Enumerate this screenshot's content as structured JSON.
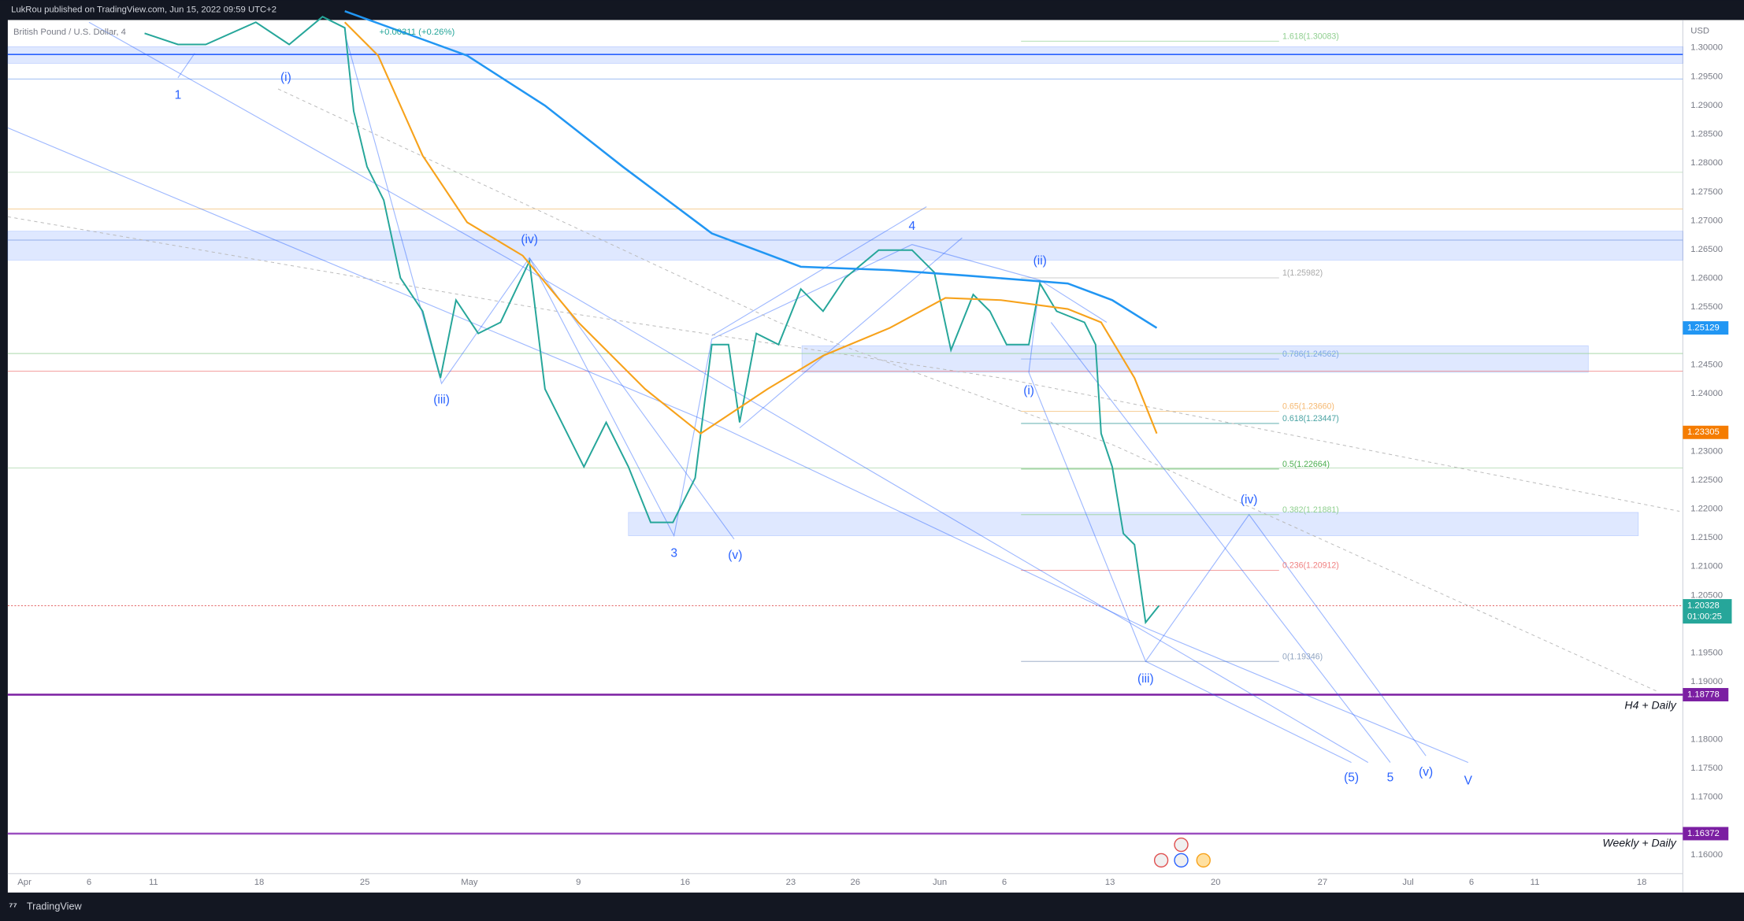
{
  "header": {
    "published": "LukRou published on TradingView.com, Jun 15, 2022 09:59 UTC+2",
    "symbol": "British Pound / U.S. Dollar, 4",
    "change": "+0.00311 (+0.26%)"
  },
  "currency": "USD",
  "price_axis": [
    "1.30000",
    "1.29500",
    "1.29000",
    "1.28500",
    "1.28000",
    "1.27500",
    "1.27000",
    "1.26500",
    "1.26000",
    "1.25500",
    "1.25000",
    "1.24500",
    "1.24000",
    "1.23500",
    "1.23000",
    "1.22500",
    "1.22000",
    "1.21500",
    "1.21000",
    "1.20500",
    "1.20000",
    "1.19500",
    "1.19000",
    "1.18500",
    "1.18000",
    "1.17500",
    "1.17000",
    "1.16500",
    "1.16000"
  ],
  "time_axis": [
    "Apr",
    "6",
    "11",
    "18",
    "25",
    "May",
    "9",
    "16",
    "23",
    "26",
    "Jun",
    "6",
    "13",
    "20",
    "27",
    "Jul",
    "6",
    "11",
    "18"
  ],
  "price_tags": {
    "ma_blue": "1.25129",
    "ma_orange": "1.23305",
    "last": "1.20328",
    "countdown": "01:00:25",
    "support_1": "1.18778",
    "support_2": "1.16372"
  },
  "fib_levels": [
    "1.618(1.30083)",
    "1(1.25982)",
    "0.786(1.24562)",
    "0.65(1.23660)",
    "0.618(1.23447)",
    "0.5(1.22664)",
    "0.382(1.21881)",
    "0.236(1.20912)",
    "0(1.19346)"
  ],
  "wave_labels": [
    "1",
    "(i)",
    "(iv)",
    "(iii)",
    "3",
    "(v)",
    "4",
    "(ii)",
    "(i)",
    "(iii)",
    "(iv)",
    "(5)",
    "5",
    "(v)",
    "V"
  ],
  "zone_labels": [
    "H4 + Daily",
    "Weekly + Daily"
  ],
  "footer": {
    "brand": "TradingView"
  }
}
